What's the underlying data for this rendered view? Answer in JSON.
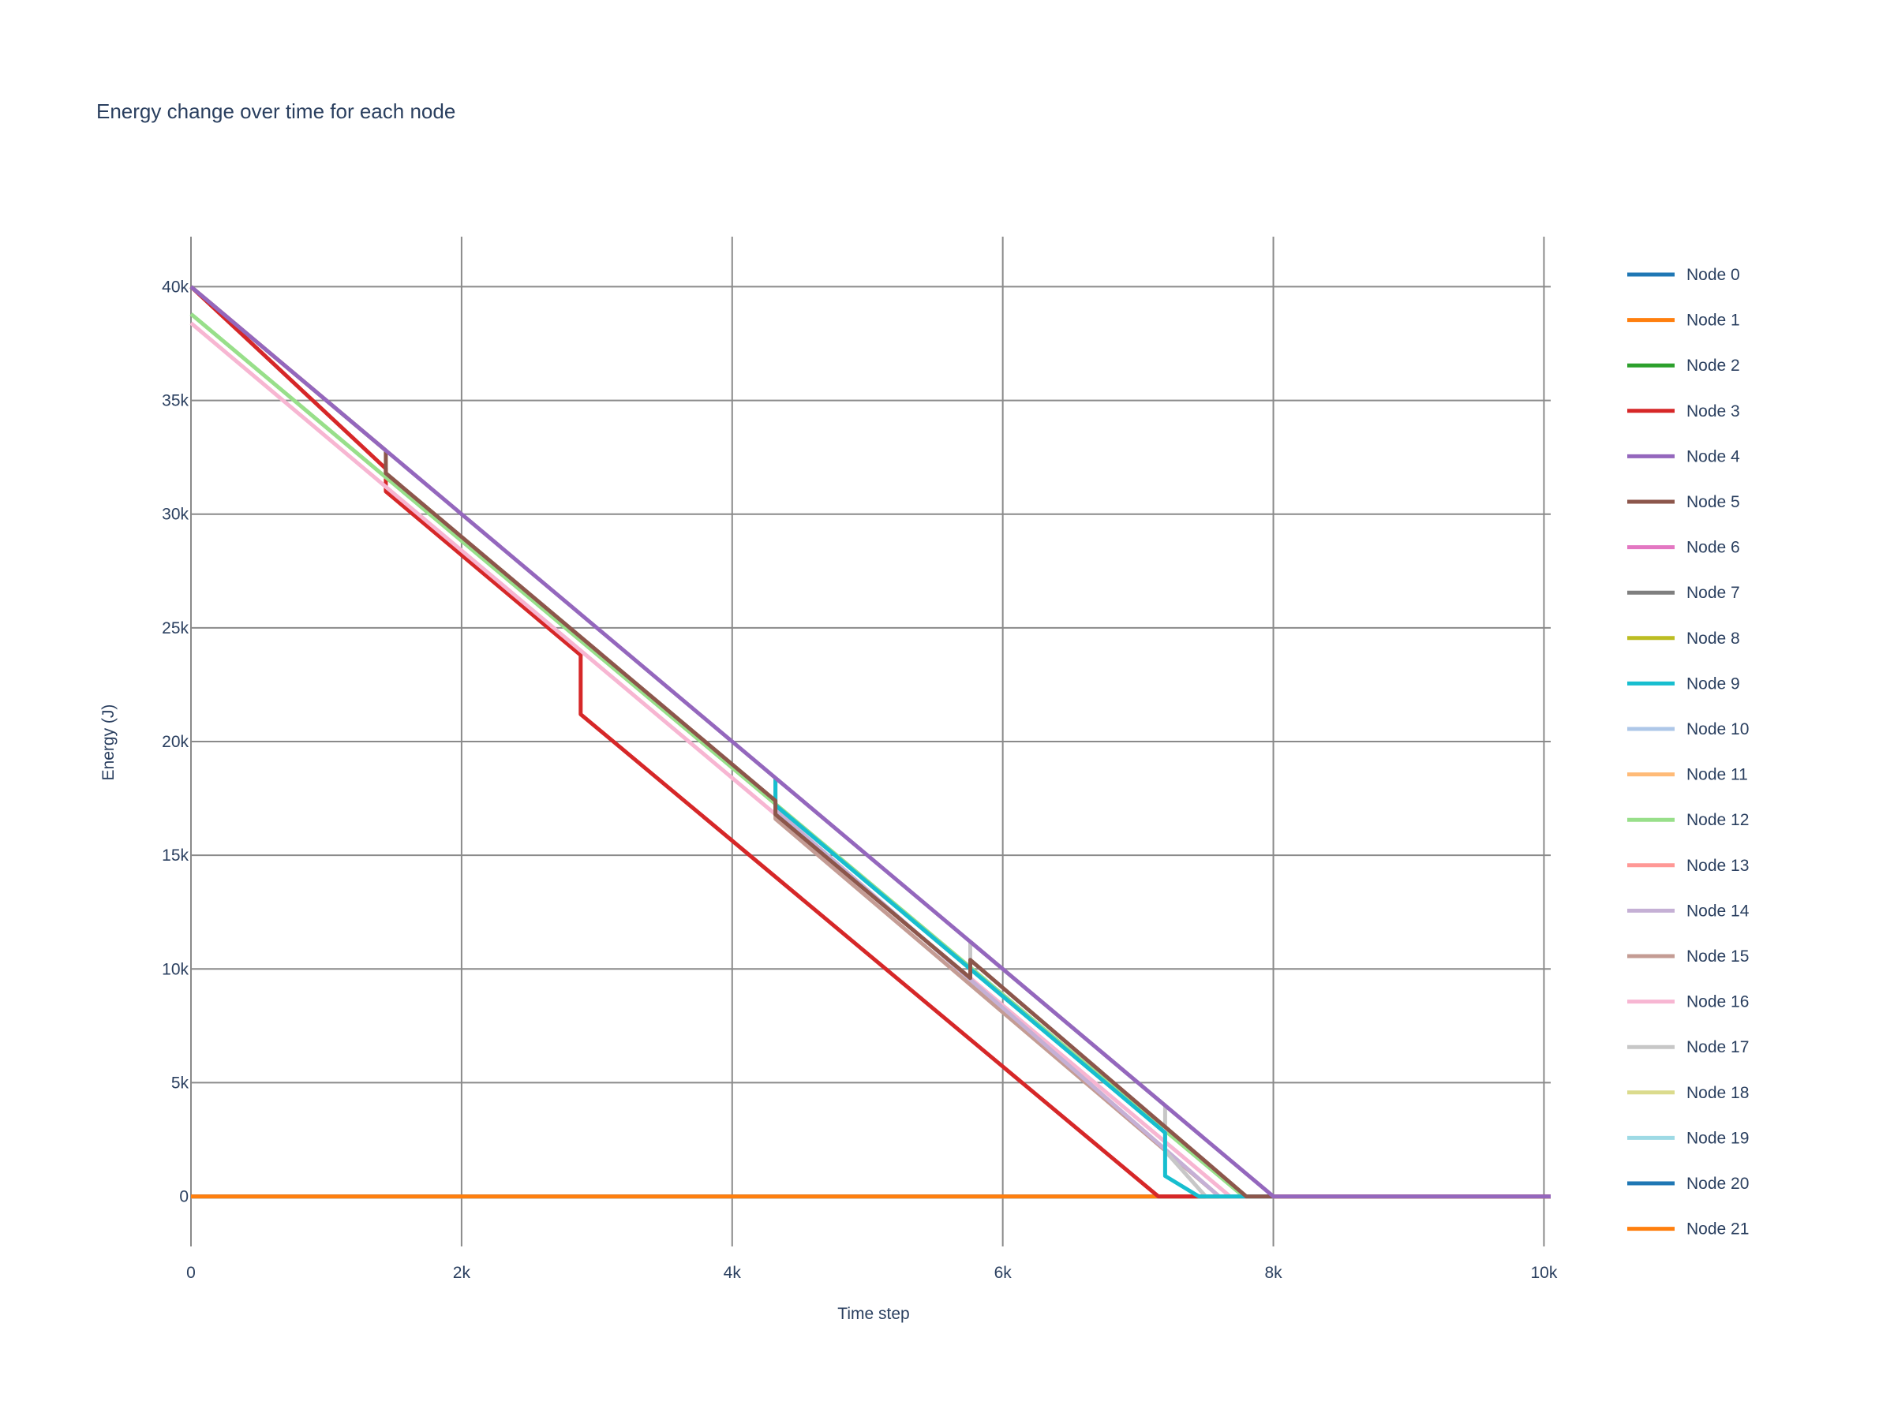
{
  "chart_data": {
    "type": "line",
    "title": "Energy change over time for each node",
    "xlabel": "Time step",
    "ylabel": "Energy (J)",
    "xlim": [
      0,
      10050
    ],
    "ylim": [
      -2200,
      42200
    ],
    "xticks": [
      0,
      2000,
      4000,
      6000,
      8000,
      10000
    ],
    "xtick_labels": [
      "0",
      "2k",
      "4k",
      "6k",
      "8k",
      "10k"
    ],
    "yticks": [
      0,
      5000,
      10000,
      15000,
      20000,
      25000,
      30000,
      35000,
      40000
    ],
    "ytick_labels": [
      "0",
      "5k",
      "10k",
      "15k",
      "20k",
      "25k",
      "30k",
      "35k",
      "40k"
    ],
    "grid": true,
    "legend_position": "right",
    "series": [
      {
        "name": "Node 0",
        "color": "#1f77b4",
        "x": [
          0,
          10050
        ],
        "y": [
          0,
          0
        ]
      },
      {
        "name": "Node 1",
        "color": "#ff7f0e",
        "x": [
          0,
          10050
        ],
        "y": [
          0,
          0
        ]
      },
      {
        "name": "Node 2",
        "color": "#2ca02c",
        "x": [
          0,
          10050
        ],
        "y": [
          0,
          0
        ]
      },
      {
        "name": "Node 3",
        "color": "#d62728",
        "x": [
          0,
          1440,
          1440,
          2880,
          2880,
          7150,
          7450,
          10050
        ],
        "y": [
          40000,
          32000,
          31000,
          23800,
          21200,
          0,
          0,
          0
        ]
      },
      {
        "name": "Node 4",
        "color": "#9467bd",
        "x": [
          0,
          8000,
          10050
        ],
        "y": [
          40000,
          0,
          0
        ]
      },
      {
        "name": "Node 5",
        "color": "#8c564b",
        "x": [
          0,
          1440,
          1440,
          4320,
          4320,
          5760,
          5760,
          7800,
          8000
        ],
        "y": [
          40000,
          32800,
          31800,
          17400,
          16800,
          9600,
          10400,
          0,
          0
        ]
      },
      {
        "name": "Node 6",
        "color": "#e377c2",
        "x": [
          0,
          10050
        ],
        "y": [
          0,
          0
        ]
      },
      {
        "name": "Node 7",
        "color": "#7f7f7f",
        "x": [
          0,
          10050
        ],
        "y": [
          0,
          0
        ]
      },
      {
        "name": "Node 8",
        "color": "#bcbd22",
        "x": [
          0,
          10050
        ],
        "y": [
          0,
          0
        ]
      },
      {
        "name": "Node 9",
        "color": "#17becf",
        "x": [
          4320,
          4320,
          7200,
          7200,
          7450,
          8000
        ],
        "y": [
          18400,
          17200,
          2800,
          900,
          0,
          0
        ]
      },
      {
        "name": "Node 10",
        "color": "#aec7e8",
        "x": [
          0,
          10050
        ],
        "y": [
          0,
          0
        ]
      },
      {
        "name": "Node 11",
        "color": "#ffbb78",
        "x": [
          0,
          10050
        ],
        "y": [
          0,
          0
        ]
      },
      {
        "name": "Node 12",
        "color": "#98df8a",
        "x": [
          0,
          7780,
          8000
        ],
        "y": [
          38800,
          0,
          0
        ]
      },
      {
        "name": "Node 13",
        "color": "#ff9896",
        "x": [
          0,
          10050
        ],
        "y": [
          0,
          0
        ]
      },
      {
        "name": "Node 14",
        "color": "#c5b0d5",
        "x": [
          4320,
          7600,
          8000
        ],
        "y": [
          17000,
          0,
          0
        ]
      },
      {
        "name": "Node 15",
        "color": "#c49c94",
        "x": [
          4320,
          4320,
          7600,
          8000
        ],
        "y": [
          18400,
          16600,
          0,
          0
        ]
      },
      {
        "name": "Node 16",
        "color": "#f7b6d2",
        "x": [
          0,
          7680,
          8000
        ],
        "y": [
          38400,
          0,
          0
        ]
      },
      {
        "name": "Node 17",
        "color": "#c7c7c7",
        "x": [
          4320,
          4320,
          5760,
          5760,
          7200,
          7200,
          7500,
          8000
        ],
        "y": [
          18400,
          16800,
          9600,
          11200,
          4000,
          2000,
          0,
          0
        ]
      },
      {
        "name": "Node 18",
        "color": "#dbdb8d",
        "x": [
          0,
          10050
        ],
        "y": [
          0,
          0
        ]
      },
      {
        "name": "Node 19",
        "color": "#9edae5",
        "x": [
          0,
          10050
        ],
        "y": [
          0,
          0
        ]
      },
      {
        "name": "Node 20",
        "color": "#1f77b4",
        "x": [
          0,
          10050
        ],
        "y": [
          0,
          0
        ]
      },
      {
        "name": "Node 21",
        "color": "#ff7f0e",
        "x": [
          0,
          10050
        ],
        "y": [
          0,
          0
        ]
      }
    ],
    "draw_order": [
      0,
      1,
      2,
      6,
      7,
      8,
      10,
      11,
      13,
      18,
      19,
      20,
      21,
      3,
      16,
      12,
      15,
      14,
      17,
      9,
      5,
      4
    ]
  }
}
